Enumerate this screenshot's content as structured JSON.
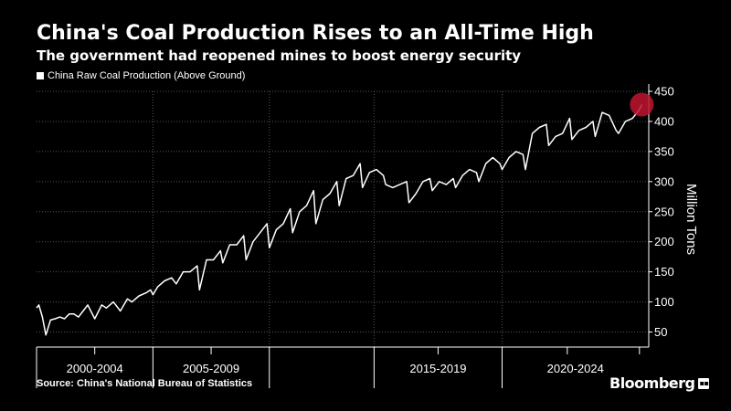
{
  "header": {
    "title": "China's Coal Production Rises to an All-Time High",
    "subtitle": "The government had reopened mines to boost energy security"
  },
  "footer": {
    "source": "Source: China's National Bureau of Statistics",
    "brand": "Bloomberg",
    "brand_mark_icon": "bloomberg-chat-icon"
  },
  "colors": {
    "background": "#000000",
    "line": "#ffffff",
    "grid": "#555555",
    "highlight": "#c0152f"
  },
  "chart_data": {
    "type": "line",
    "title": "China's Coal Production Rises to an All-Time High",
    "subtitle": "The government had reopened mines to boost energy security",
    "ylabel": "Million Tons",
    "y_axis_position": "right",
    "ylim": [
      25,
      450
    ],
    "yticks": [
      50,
      100,
      150,
      200,
      250,
      300,
      350,
      400,
      450
    ],
    "xlim": [
      1999.0,
      2025.3
    ],
    "x_period_labels": [
      {
        "label": "2000-2004",
        "start": 1999.0,
        "end": 2004.0
      },
      {
        "label": "2005-2009",
        "start": 2004.0,
        "end": 2009.0
      },
      {
        "label": "2015-2019",
        "start": 2013.5,
        "end": 2019.0
      },
      {
        "label": "2020-2024",
        "start": 2019.0,
        "end": 2025.3
      }
    ],
    "x_separators": [
      2004.0,
      2009.0,
      2013.5,
      2019.0
    ],
    "x_minor_ticks": [
      2001.5,
      2006.5,
      2016.25,
      2021.8,
      2024.9
    ],
    "grid": true,
    "legend": {
      "position": "top-left",
      "entries": [
        "China Raw Coal Production (Above Ground)"
      ]
    },
    "highlight": {
      "x": 2025.0,
      "y": 428
    },
    "series": [
      {
        "name": "China Raw Coal Production (Above Ground)",
        "x": [
          1999.0,
          1999.1,
          1999.25,
          1999.4,
          1999.6,
          1999.8,
          2000.0,
          2000.2,
          2000.4,
          2000.6,
          2000.8,
          2001.0,
          2001.2,
          2001.5,
          2001.8,
          2002.0,
          2002.3,
          2002.6,
          2002.9,
          2003.1,
          2003.4,
          2003.7,
          2003.9,
          2004.0,
          2004.2,
          2004.5,
          2004.8,
          2005.0,
          2005.3,
          2005.6,
          2005.9,
          2006.0,
          2006.3,
          2006.6,
          2006.9,
          2007.0,
          2007.3,
          2007.6,
          2007.9,
          2008.0,
          2008.3,
          2008.6,
          2008.9,
          2009.0,
          2009.3,
          2009.6,
          2009.9,
          2010.0,
          2010.3,
          2010.6,
          2010.9,
          2011.0,
          2011.3,
          2011.6,
          2011.9,
          2012.0,
          2012.3,
          2012.6,
          2012.9,
          2013.0,
          2013.3,
          2013.6,
          2013.9,
          2014.0,
          2014.3,
          2014.6,
          2014.9,
          2015.0,
          2015.3,
          2015.6,
          2015.9,
          2016.0,
          2016.3,
          2016.6,
          2016.9,
          2017.0,
          2017.3,
          2017.6,
          2017.9,
          2018.0,
          2018.3,
          2018.6,
          2018.9,
          2019.0,
          2019.3,
          2019.6,
          2019.9,
          2020.0,
          2020.3,
          2020.6,
          2020.9,
          2021.0,
          2021.3,
          2021.6,
          2021.9,
          2022.0,
          2022.3,
          2022.6,
          2022.9,
          2023.0,
          2023.3,
          2023.6,
          2023.9,
          2024.0,
          2024.3,
          2024.6,
          2024.9,
          2025.0
        ],
        "values": [
          90,
          95,
          75,
          45,
          70,
          72,
          75,
          72,
          80,
          80,
          75,
          85,
          95,
          72,
          95,
          90,
          100,
          85,
          105,
          100,
          110,
          115,
          120,
          112,
          125,
          135,
          140,
          130,
          150,
          150,
          160,
          120,
          170,
          170,
          185,
          165,
          195,
          195,
          210,
          170,
          200,
          215,
          230,
          190,
          220,
          230,
          255,
          215,
          250,
          260,
          285,
          230,
          270,
          280,
          300,
          260,
          305,
          310,
          330,
          290,
          315,
          320,
          310,
          295,
          290,
          295,
          300,
          265,
          280,
          300,
          305,
          285,
          300,
          295,
          305,
          290,
          310,
          320,
          315,
          300,
          330,
          340,
          330,
          320,
          340,
          350,
          345,
          320,
          380,
          390,
          395,
          360,
          375,
          380,
          405,
          370,
          385,
          390,
          400,
          375,
          415,
          410,
          385,
          380,
          400,
          405,
          420,
          428
        ]
      }
    ]
  }
}
